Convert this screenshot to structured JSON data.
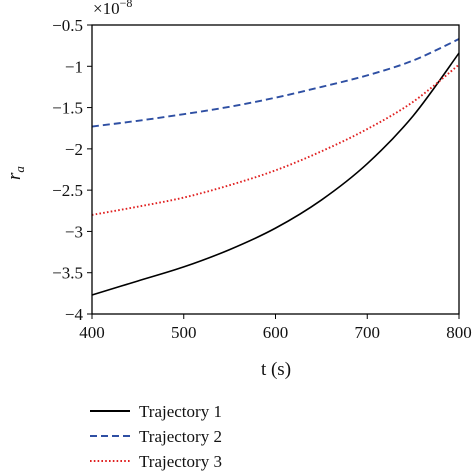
{
  "chart_data": {
    "type": "line",
    "title": "",
    "xlabel": "t (s)",
    "ylabel_base": "r",
    "ylabel_sub": "a",
    "scale_base": "×10",
    "scale_exp": "−8",
    "xlim": [
      400,
      800
    ],
    "ylim": [
      -4,
      -0.5
    ],
    "x_ticks": [
      400,
      500,
      600,
      700,
      800
    ],
    "x_tick_labels": [
      "400",
      "500",
      "600",
      "700",
      "800"
    ],
    "y_ticks": [
      -0.5,
      -1,
      -1.5,
      -2,
      -2.5,
      -3,
      -3.5,
      -4
    ],
    "y_tick_labels": [
      "−0.5",
      "−1",
      "−1.5",
      "−2",
      "−2.5",
      "−3",
      "−3.5",
      "−4"
    ],
    "grid": false,
    "legend_position": "below",
    "x": [
      400,
      450,
      500,
      550,
      600,
      650,
      700,
      750,
      800
    ],
    "series": [
      {
        "name": "Trajectory 1",
        "color": "#000000",
        "style": "solid",
        "values": [
          -3.77,
          -3.6,
          -3.43,
          -3.22,
          -2.96,
          -2.62,
          -2.18,
          -1.6,
          -0.84
        ]
      },
      {
        "name": "Trajectory 2",
        "color": "#2e4fa3",
        "style": "dashed",
        "values": [
          -1.73,
          -1.66,
          -1.58,
          -1.49,
          -1.38,
          -1.25,
          -1.11,
          -0.93,
          -0.67
        ]
      },
      {
        "name": "Trajectory 3",
        "color": "#e02020",
        "style": "dotted",
        "values": [
          -2.8,
          -2.7,
          -2.59,
          -2.44,
          -2.26,
          -2.03,
          -1.76,
          -1.43,
          -0.98
        ]
      }
    ]
  }
}
